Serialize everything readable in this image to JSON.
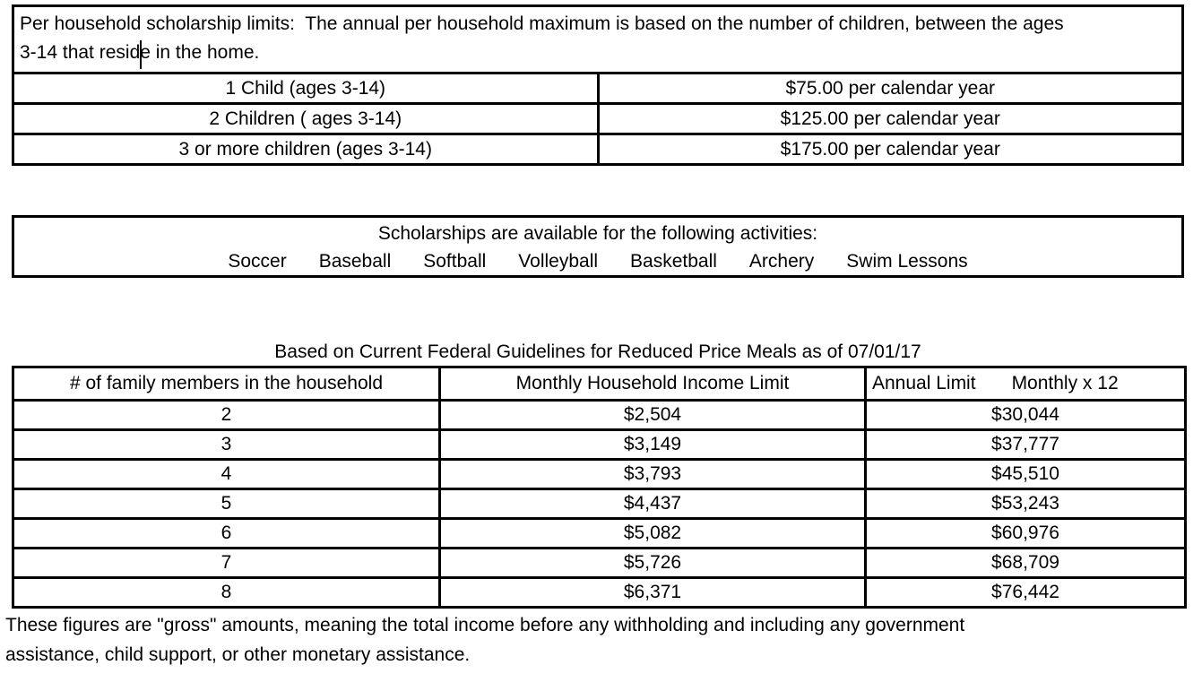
{
  "page": {
    "background": "#ffffff",
    "text_color": "#000000",
    "border_color": "#000000"
  },
  "household_limits": {
    "intro_line1": "Per household scholarship limits:  The annual per household maximum is based on the number of children, between the ages",
    "intro_line2": "3-14 that reside in the home.",
    "rows": [
      {
        "label": "1 Child (ages 3-14)",
        "value": "$75.00 per calendar year"
      },
      {
        "label": "2 Children ( ages 3-14)",
        "value": "$125.00 per calendar year"
      },
      {
        "label": "3 or more children (ages 3-14)",
        "value": "$175.00 per calendar year"
      }
    ]
  },
  "activities": {
    "heading": "Scholarships are available for the following activities:",
    "items": [
      "Soccer",
      "Baseball",
      "Softball",
      "Volleyball",
      "Basketball",
      "Archery",
      "Swim Lessons"
    ]
  },
  "income_guidelines": {
    "title": "Based on Current Federal Guidelines for Reduced Price Meals as of 07/01/17",
    "columns": {
      "members": "# of family members in the household",
      "monthly": "Monthly Household Income Limit",
      "annual_part1": "Annual Limit",
      "annual_part2": "Monthly x 12"
    },
    "rows": [
      {
        "members": "2",
        "monthly": "$2,504",
        "annual": "$30,044"
      },
      {
        "members": "3",
        "monthly": "$3,149",
        "annual": "$37,777"
      },
      {
        "members": "4",
        "monthly": "$3,793",
        "annual": "$45,510"
      },
      {
        "members": "5",
        "monthly": "$4,437",
        "annual": "$53,243"
      },
      {
        "members": "6",
        "monthly": "$5,082",
        "annual": "$60,976"
      },
      {
        "members": "7",
        "monthly": "$5,726",
        "annual": "$68,709"
      },
      {
        "members": "8",
        "monthly": "$6,371",
        "annual": "$76,442"
      }
    ]
  },
  "footnote": {
    "line1": "These figures are \"gross\" amounts, meaning the total income before any withholding and including any government",
    "line2": "assistance, child support, or other monetary assistance."
  }
}
